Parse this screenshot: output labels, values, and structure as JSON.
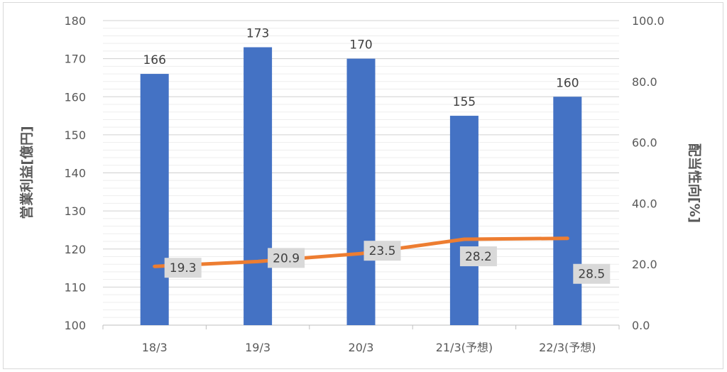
{
  "chart_data": {
    "type": "bar+line",
    "categories": [
      "18/3",
      "19/3",
      "20/3",
      "21/3(予想)",
      "22/3(予想)"
    ],
    "series": [
      {
        "values": [
          166,
          173,
          170,
          155,
          160
        ],
        "type": "bar",
        "axis": "left",
        "color": "#4472c4"
      },
      {
        "values": [
          19.3,
          20.9,
          23.5,
          28.2,
          28.5
        ],
        "type": "line",
        "axis": "right",
        "color": "#ed7d31"
      }
    ],
    "ylabel": "営業利益[億円]",
    "y2label": "配当性向[%]",
    "ylim": [
      100,
      180
    ],
    "y2lim": [
      0,
      100
    ],
    "yticks": [
      "100",
      "110",
      "120",
      "130",
      "140",
      "150",
      "160",
      "170",
      "180"
    ],
    "y2ticks": [
      "0.0",
      "20.0",
      "40.0",
      "60.0",
      "80.0",
      "100.0"
    ],
    "bar_labels": [
      "166",
      "173",
      "170",
      "155",
      "160"
    ],
    "line_labels": [
      "19.3",
      "20.9",
      "23.5",
      "28.2",
      "28.5"
    ],
    "grid": true,
    "colors": {
      "bar": "#4472c4",
      "line": "#ed7d31",
      "label_box": "#d9d9d9"
    }
  }
}
